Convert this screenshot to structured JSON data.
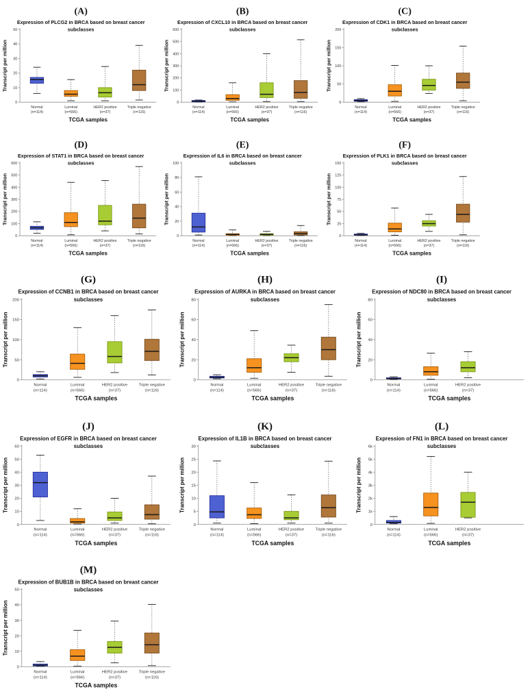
{
  "figure": {
    "ylabel": "Transcript per million",
    "xlabel": "TCGA samples",
    "groups": [
      {
        "name": "Normal",
        "n_label": "(n=114)",
        "fill": "#4e61d2",
        "stroke": "#26309b"
      },
      {
        "name": "Luminal",
        "n_label": "(n=566)",
        "fill": "#f69220",
        "stroke": "#a8600e"
      },
      {
        "name": "HER2 positive",
        "n_label": "(n=37)",
        "fill": "#a8cc33",
        "stroke": "#7d9a1c"
      },
      {
        "name": "Triple negative",
        "n_label": "(n=116)",
        "fill": "#b0763a",
        "stroke": "#7a4e20"
      }
    ],
    "colors": {
      "axis": "#909090",
      "tick_text": "#333333",
      "title_text": "#111111",
      "median": "#1a1a1a",
      "whisker": "#555555"
    }
  },
  "chart_data": [
    {
      "type": "box",
      "panel": "(A)",
      "gene": "PLCG2",
      "title_lines": [
        "Expression of PLCG2 in BRCA based on breast cancer",
        "subclasses"
      ],
      "ylim": [
        0,
        50
      ],
      "yticks": [
        0,
        10,
        20,
        30,
        40,
        50
      ],
      "ytick_labels": [
        "0",
        "10",
        "20",
        "30",
        "40",
        "50"
      ],
      "series": [
        {
          "group": "Normal",
          "whisker_low": 6,
          "q1": 13,
          "median": 15.5,
          "q3": 17,
          "whisker_high": 24
        },
        {
          "group": "Luminal",
          "whisker_low": 1,
          "q1": 4,
          "median": 5.5,
          "q3": 8,
          "whisker_high": 15.5
        },
        {
          "group": "HER2 positive",
          "whisker_low": 1,
          "q1": 3.5,
          "median": 6.5,
          "q3": 10,
          "whisker_high": 24.5
        },
        {
          "group": "Triple negative",
          "whisker_low": 1.5,
          "q1": 8,
          "median": 12,
          "q3": 22,
          "whisker_high": 39
        }
      ]
    },
    {
      "type": "box",
      "panel": "(B)",
      "gene": "CXCL10",
      "title_lines": [
        "Expression of CXCL10 in BRCA based on breast cancer",
        "subclasses"
      ],
      "ylim": [
        0,
        600
      ],
      "yticks": [
        0,
        100,
        200,
        300,
        400,
        500,
        600
      ],
      "ytick_labels": [
        "0",
        "100",
        "200",
        "300",
        "400",
        "500",
        "600"
      ],
      "series": [
        {
          "group": "Normal",
          "whisker_low": 1,
          "q1": 3,
          "median": 8,
          "q3": 14,
          "whisker_high": 18
        },
        {
          "group": "Luminal",
          "whisker_low": 2,
          "q1": 15,
          "median": 30,
          "q3": 62,
          "whisker_high": 160
        },
        {
          "group": "HER2 positive",
          "whisker_low": 5,
          "q1": 38,
          "median": 65,
          "q3": 160,
          "whisker_high": 400
        },
        {
          "group": "Triple negative",
          "whisker_low": 5,
          "q1": 32,
          "median": 80,
          "q3": 178,
          "whisker_high": 515
        }
      ]
    },
    {
      "type": "box",
      "panel": "(C)",
      "gene": "CDK1",
      "title_lines": [
        "Expression of CDK1 in BRCA based on breast cancer",
        "subclasses"
      ],
      "ylim": [
        0,
        200
      ],
      "yticks": [
        0,
        50,
        100,
        150,
        200
      ],
      "ytick_labels": [
        "0",
        "50",
        "100",
        "150",
        "200"
      ],
      "series": [
        {
          "group": "Normal",
          "whisker_low": 1,
          "q1": 2.5,
          "median": 4.5,
          "q3": 7,
          "whisker_high": 10
        },
        {
          "group": "Luminal",
          "whisker_low": 2,
          "q1": 17,
          "median": 30,
          "q3": 48,
          "whisker_high": 101
        },
        {
          "group": "HER2 positive",
          "whisker_low": 24,
          "q1": 33,
          "median": 46,
          "q3": 63,
          "whisker_high": 100
        },
        {
          "group": "Triple negative",
          "whisker_low": 4,
          "q1": 38,
          "median": 55,
          "q3": 80,
          "whisker_high": 154
        }
      ]
    },
    {
      "type": "box",
      "panel": "(D)",
      "gene": "STAT1",
      "title_lines": [
        "Expression of STAT1 in BRCA based on breast cancer",
        "subclasses"
      ],
      "ylim": [
        0,
        600
      ],
      "yticks": [
        0,
        100,
        200,
        300,
        400,
        500,
        600
      ],
      "ytick_labels": [
        "0",
        "100",
        "200",
        "300",
        "400",
        "500",
        "600"
      ],
      "series": [
        {
          "group": "Normal",
          "whisker_low": 20,
          "q1": 52,
          "median": 65,
          "q3": 78,
          "whisker_high": 115
        },
        {
          "group": "Luminal",
          "whisker_low": 8,
          "q1": 75,
          "median": 110,
          "q3": 190,
          "whisker_high": 440
        },
        {
          "group": "HER2 positive",
          "whisker_low": 40,
          "q1": 90,
          "median": 120,
          "q3": 250,
          "whisker_high": 455
        },
        {
          "group": "Triple negative",
          "whisker_low": 15,
          "q1": 65,
          "median": 145,
          "q3": 260,
          "whisker_high": 570
        }
      ]
    },
    {
      "type": "box",
      "panel": "(E)",
      "gene": "IL6",
      "title_lines": [
        "Expression of IL6 in BRCA based on breast cancer",
        "subclasses"
      ],
      "ylim": [
        0,
        100
      ],
      "yticks": [
        0,
        20,
        40,
        60,
        80,
        100
      ],
      "ytick_labels": [
        "0",
        "20",
        "40",
        "60",
        "80",
        "100"
      ],
      "series": [
        {
          "group": "Normal",
          "whisker_low": 1,
          "q1": 5,
          "median": 12,
          "q3": 31,
          "whisker_high": 81
        },
        {
          "group": "Luminal",
          "whisker_low": 0.3,
          "q1": 0.8,
          "median": 1.8,
          "q3": 2.8,
          "whisker_high": 8
        },
        {
          "group": "HER2 positive",
          "whisker_low": 0.3,
          "q1": 0.8,
          "median": 1.8,
          "q3": 2.8,
          "whisker_high": 6
        },
        {
          "group": "Triple negative",
          "whisker_low": 0.3,
          "q1": 1,
          "median": 3,
          "q3": 5.5,
          "whisker_high": 14
        }
      ]
    },
    {
      "type": "box",
      "panel": "(F)",
      "gene": "PLK1",
      "title_lines": [
        "Expression of PLK1 in BRCA based on breast cancer",
        "subclasses"
      ],
      "ylim": [
        0,
        150
      ],
      "yticks": [
        0,
        25,
        50,
        75,
        100,
        125,
        150
      ],
      "ytick_labels": [
        "0",
        "25",
        "50",
        "75",
        "100",
        "125",
        "150"
      ],
      "series": [
        {
          "group": "Normal",
          "whisker_low": 0.5,
          "q1": 1,
          "median": 2,
          "q3": 3.5,
          "whisker_high": 5
        },
        {
          "group": "Luminal",
          "whisker_low": 1,
          "q1": 8,
          "median": 14,
          "q3": 26,
          "whisker_high": 57
        },
        {
          "group": "HER2 positive",
          "whisker_low": 9,
          "q1": 20,
          "median": 25,
          "q3": 31,
          "whisker_high": 44
        },
        {
          "group": "Triple negative",
          "whisker_low": 2,
          "q1": 28,
          "median": 44,
          "q3": 65,
          "whisker_high": 122
        }
      ]
    },
    {
      "type": "box",
      "panel": "(G)",
      "gene": "CCNB1",
      "title_lines": [
        "Expression of CCNB1 in BRCA based on breast cancer",
        "subclasses"
      ],
      "ylim": [
        0,
        200
      ],
      "yticks": [
        0,
        50,
        100,
        150,
        200
      ],
      "ytick_labels": [
        "0",
        "50",
        "100",
        "150",
        "200"
      ],
      "series": [
        {
          "group": "Normal",
          "whisker_low": 2,
          "q1": 7,
          "median": 10,
          "q3": 13,
          "whisker_high": 20
        },
        {
          "group": "Luminal",
          "whisker_low": 6,
          "q1": 26,
          "median": 41,
          "q3": 64,
          "whisker_high": 130
        },
        {
          "group": "HER2 positive",
          "whisker_low": 18,
          "q1": 42,
          "median": 58,
          "q3": 95,
          "whisker_high": 160
        },
        {
          "group": "Triple negative",
          "whisker_low": 12,
          "q1": 48,
          "median": 71,
          "q3": 101,
          "whisker_high": 174
        }
      ]
    },
    {
      "type": "box",
      "panel": "(H)",
      "gene": "AURKA",
      "title_lines": [
        "Expression of AURKA in BRCA based on breast cancer",
        "subclasses"
      ],
      "ylim": [
        0,
        80
      ],
      "yticks": [
        0,
        20,
        40,
        60,
        80
      ],
      "ytick_labels": [
        "0",
        "20",
        "40",
        "60",
        "80"
      ],
      "series": [
        {
          "group": "Normal",
          "whisker_low": 1,
          "q1": 1.8,
          "median": 2.5,
          "q3": 3.5,
          "whisker_high": 5
        },
        {
          "group": "Luminal",
          "whisker_low": 1.5,
          "q1": 7.5,
          "median": 12,
          "q3": 21,
          "whisker_high": 49
        },
        {
          "group": "HER2 positive",
          "whisker_low": 7.5,
          "q1": 18,
          "median": 22,
          "q3": 26,
          "whisker_high": 34.5
        },
        {
          "group": "Triple negative",
          "whisker_low": 3.5,
          "q1": 20,
          "median": 30,
          "q3": 42.5,
          "whisker_high": 75
        }
      ]
    },
    {
      "type": "box",
      "panel": "(I)",
      "gene": "NDC80",
      "title_lines": [
        "Expression of NDC80 in BRCA based on breast cancer",
        "subclasses"
      ],
      "ylim": [
        0,
        80
      ],
      "yticks": [
        0,
        20,
        40,
        60,
        80
      ],
      "ytick_labels": [
        "0",
        "20",
        "40",
        "60",
        "80"
      ],
      "series": [
        {
          "group": "Normal",
          "whisker_low": 0.3,
          "q1": 0.8,
          "median": 1.3,
          "q3": 2,
          "whisker_high": 3
        },
        {
          "group": "Luminal",
          "whisker_low": 0.5,
          "q1": 4.5,
          "median": 8,
          "q3": 13,
          "whisker_high": 26.5
        },
        {
          "group": "HER2 positive",
          "whisker_low": 2,
          "q1": 8,
          "median": 12,
          "q3": 18,
          "whisker_high": 28
        }
      ]
    },
    {
      "type": "box",
      "panel": "(J)",
      "gene": "EGFR",
      "title_lines": [
        "Expression of EGFR in BRCA based on breast cancer",
        "subclasses"
      ],
      "ylim": [
        0,
        60
      ],
      "yticks": [
        0,
        10,
        20,
        30,
        40,
        50,
        60
      ],
      "ytick_labels": [
        "0",
        "10",
        "20",
        "30",
        "40",
        "50",
        "60"
      ],
      "series": [
        {
          "group": "Normal",
          "whisker_low": 3,
          "q1": 21,
          "median": 32,
          "q3": 40,
          "whisker_high": 53
        },
        {
          "group": "Luminal",
          "whisker_low": 0.3,
          "q1": 1,
          "median": 2,
          "q3": 4.5,
          "whisker_high": 12
        },
        {
          "group": "HER2 positive",
          "whisker_low": 1,
          "q1": 3,
          "median": 5,
          "q3": 9.5,
          "whisker_high": 20
        },
        {
          "group": "Triple negative",
          "whisker_low": 0.5,
          "q1": 4,
          "median": 7.5,
          "q3": 15,
          "whisker_high": 37
        }
      ]
    },
    {
      "type": "box",
      "panel": "(K)",
      "gene": "IL1B",
      "title_lines": [
        "Expression of IL1B in BRCA based on breast cancer",
        "subclasses"
      ],
      "ylim": [
        0,
        30
      ],
      "yticks": [
        0,
        5,
        10,
        15,
        20,
        25,
        30
      ],
      "ytick_labels": [
        "0",
        "5",
        "10",
        "15",
        "20",
        "25",
        "30"
      ],
      "series": [
        {
          "group": "Normal",
          "whisker_low": 0.5,
          "q1": 2.5,
          "median": 4.8,
          "q3": 11,
          "whisker_high": 24.3
        },
        {
          "group": "Luminal",
          "whisker_low": 0.3,
          "q1": 2.3,
          "median": 3.7,
          "q3": 6.3,
          "whisker_high": 16
        },
        {
          "group": "HER2 positive",
          "whisker_low": 0.5,
          "q1": 1.8,
          "median": 2.5,
          "q3": 5,
          "whisker_high": 11.3
        },
        {
          "group": "Triple negative",
          "whisker_low": 0.5,
          "q1": 2.8,
          "median": 6.4,
          "q3": 11.3,
          "whisker_high": 24.2
        }
      ]
    },
    {
      "type": "box",
      "panel": "(L)",
      "gene": "FN1",
      "title_lines": [
        "Expression of FN1 in BRCA based on breast cancer",
        "subclasses"
      ],
      "ylim": [
        0,
        6000
      ],
      "yticks": [
        0,
        1000,
        2000,
        3000,
        4000,
        5000,
        6000
      ],
      "ytick_labels": [
        "0",
        "1k",
        "2k",
        "3k",
        "4k",
        "5k",
        "6k"
      ],
      "series": [
        {
          "group": "Normal",
          "whisker_low": 50,
          "q1": 100,
          "median": 150,
          "q3": 300,
          "whisker_high": 600
        },
        {
          "group": "Luminal",
          "whisker_low": 80,
          "q1": 650,
          "median": 1300,
          "q3": 2400,
          "whisker_high": 5200
        },
        {
          "group": "HER2 positive",
          "whisker_low": 500,
          "q1": 550,
          "median": 1700,
          "q3": 2450,
          "whisker_high": 4000
        }
      ]
    },
    {
      "type": "box",
      "panel": "(M)",
      "gene": "BUB1B",
      "title_lines": [
        "Expression of BUB1B in BRCA based on breast cancer",
        "subclasses"
      ],
      "ylim": [
        0,
        50
      ],
      "yticks": [
        0,
        10,
        20,
        30,
        40,
        50
      ],
      "ytick_labels": [
        "0",
        "10",
        "20",
        "30",
        "40",
        "50"
      ],
      "series": [
        {
          "group": "Normal",
          "whisker_low": 0.3,
          "q1": 0.5,
          "median": 1,
          "q3": 1.7,
          "whisker_high": 3.3
        },
        {
          "group": "Luminal",
          "whisker_low": 0.3,
          "q1": 4,
          "median": 6.8,
          "q3": 11,
          "whisker_high": 23.5
        },
        {
          "group": "HER2 positive",
          "whisker_low": 2.5,
          "q1": 8.8,
          "median": 12.5,
          "q3": 16.3,
          "whisker_high": 29.5
        },
        {
          "group": "Triple negative",
          "whisker_low": 0.7,
          "q1": 8.8,
          "median": 14.2,
          "q3": 21.8,
          "whisker_high": 40.3
        }
      ]
    }
  ]
}
